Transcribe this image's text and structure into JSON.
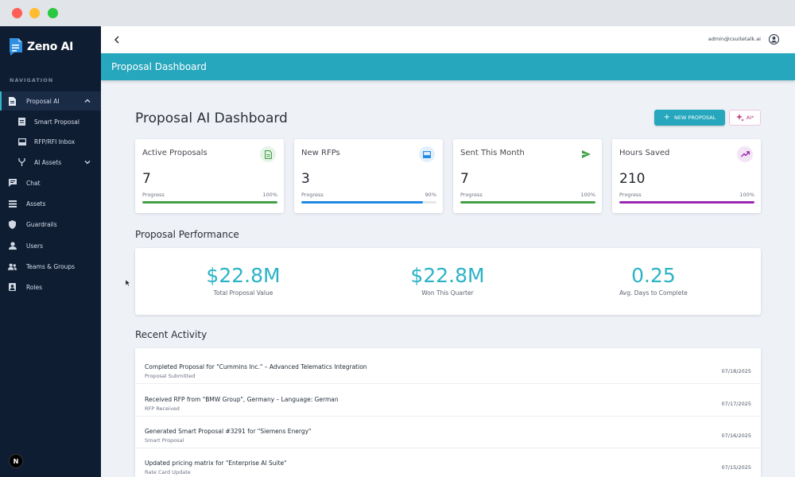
{
  "sidebar": {
    "brand": "Zeno AI",
    "nav_heading": "NAVIGATION",
    "items": [
      {
        "label": "Proposal AI"
      },
      {
        "label": "Smart Proposal"
      },
      {
        "label": "RFP/RFI Inbox"
      },
      {
        "label": "AI Assets"
      },
      {
        "label": "Chat"
      },
      {
        "label": "Assets"
      },
      {
        "label": "Guardrails"
      },
      {
        "label": "Users"
      },
      {
        "label": "Teams & Groups"
      },
      {
        "label": "Roles"
      }
    ],
    "footer_badge": "N"
  },
  "topbar": {
    "user_email": "admin@csuitetalk.ai"
  },
  "header": {
    "title": "Proposal Dashboard"
  },
  "main": {
    "title": "Proposal AI Dashboard",
    "new_proposal_label": "NEW PROPOSAL",
    "ai_label": "AI*",
    "stat_cards": [
      {
        "label": "Active Proposals",
        "value": "7",
        "progress_label": "Progress",
        "progress_text": "100%",
        "progress": 100,
        "color": "#43a047",
        "icon": "document-icon",
        "icon_bg": "#e6f4e7"
      },
      {
        "label": "New RFPs",
        "value": "3",
        "progress_label": "Progress",
        "progress_text": "90%",
        "progress": 90,
        "color": "#1e88e5",
        "icon": "inbox-icon",
        "icon_bg": "#e3f0fb"
      },
      {
        "label": "Sent This Month",
        "value": "7",
        "progress_label": "Progress",
        "progress_text": "100%",
        "progress": 100,
        "color": "#43a047",
        "icon": "send-icon",
        "icon_bg": "#e6f4e7"
      },
      {
        "label": "Hours Saved",
        "value": "210",
        "progress_label": "Progress",
        "progress_text": "100%",
        "progress": 100,
        "color": "#9c27b0",
        "icon": "trending-up-icon",
        "icon_bg": "#f3e5f5"
      }
    ],
    "performance": {
      "title": "Proposal Performance",
      "metrics": [
        {
          "value": "$22.8M",
          "label": "Total Proposal Value"
        },
        {
          "value": "$22.8M",
          "label": "Won This Quarter"
        },
        {
          "value": "0.25",
          "label": "Avg. Days to Complete"
        }
      ]
    },
    "activity": {
      "title": "Recent Activity",
      "items": [
        {
          "title": "Completed Proposal for \"Cummins Inc.\" – Advanced Telematics Integration",
          "subtitle": "Proposal Submitted",
          "date": "07/18/2025"
        },
        {
          "title": "Received RFP from \"BMW Group\", Germany – Language: German",
          "subtitle": "RFP Received",
          "date": "07/17/2025"
        },
        {
          "title": "Generated Smart Proposal #3291 for \"Siemens Energy\"",
          "subtitle": "Smart Proposal",
          "date": "07/16/2025"
        },
        {
          "title": "Updated pricing matrix for \"Enterprise AI Suite\"",
          "subtitle": "Rate Card Update",
          "date": "07/15/2025"
        }
      ]
    }
  },
  "colors": {
    "accent": "#27a7bd",
    "sidebar_bg": "#0f1d33",
    "metric_text": "#2bb3c6"
  }
}
